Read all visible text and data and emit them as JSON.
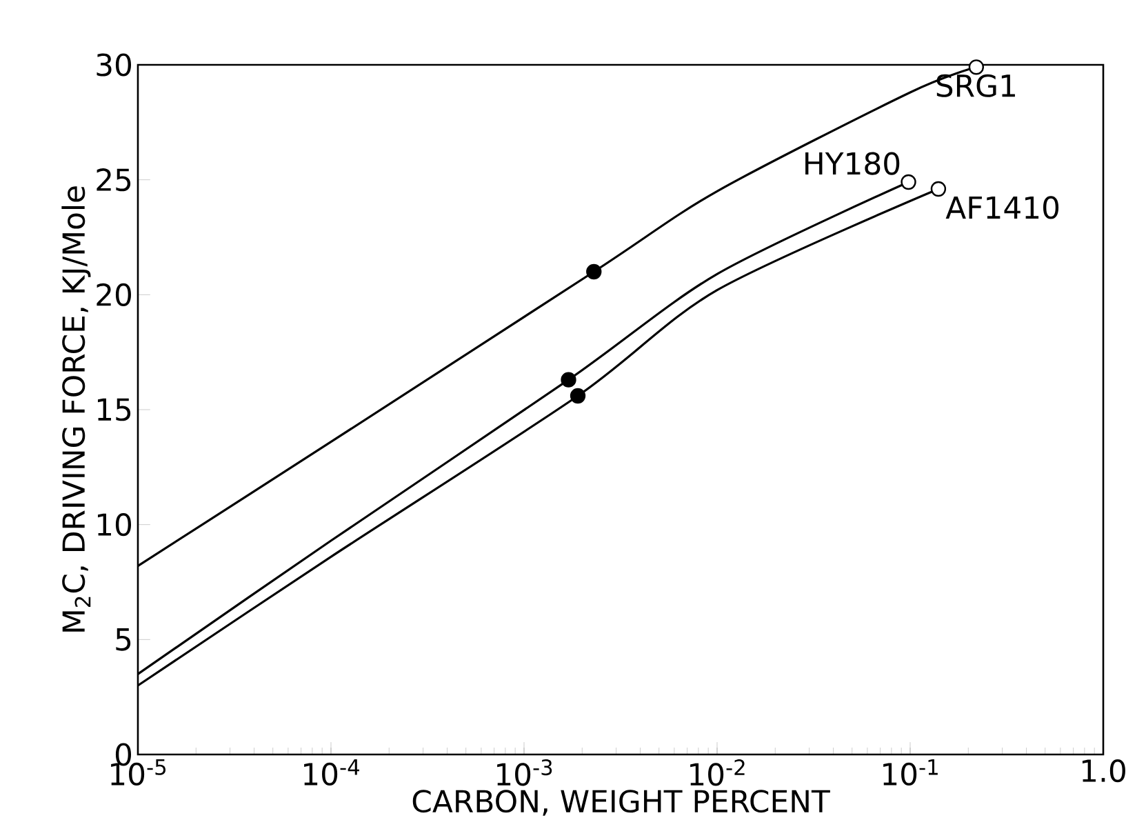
{
  "chart_data": {
    "type": "line",
    "xlabel": "CARBON, WEIGHT PERCENT",
    "ylabel": "M$_{2}$C, DRIVING FORCE, KJ/Mole",
    "log": "x",
    "grid": false,
    "line_style": "solid",
    "marker": "none",
    "xlim": [
      1e-05,
      1.0
    ],
    "ylim": [
      0,
      30
    ],
    "xticks": [
      {
        "value": 1e-05,
        "label": "10$^{-5}$"
      },
      {
        "value": 0.0001,
        "label": "10$^{-4}$"
      },
      {
        "value": 0.001,
        "label": "10$^{-3}$"
      },
      {
        "value": 0.01,
        "label": "10$^{-2}$"
      },
      {
        "value": 0.1,
        "label": "10$^{-1}$"
      },
      {
        "value": 1.0,
        "label": "1.0"
      }
    ],
    "yticks": [
      0,
      5,
      10,
      15,
      20,
      25,
      30
    ],
    "series": [
      {
        "name": "SRG1",
        "color": "#000000",
        "x": [
          1e-05,
          0.0001,
          0.0023,
          0.01,
          0.1,
          0.22
        ],
        "values": [
          8.2,
          13.6,
          21.0,
          24.5,
          28.8,
          29.9
        ]
      },
      {
        "name": "HY180",
        "color": "#000000",
        "x": [
          1e-05,
          0.0001,
          0.0017,
          0.01,
          0.098
        ],
        "values": [
          3.5,
          9.3,
          16.3,
          20.9,
          24.9
        ]
      },
      {
        "name": "AF1410",
        "color": "#000000",
        "x": [
          1e-05,
          0.0001,
          0.0019,
          0.01,
          0.14
        ],
        "values": [
          3.0,
          8.6,
          15.6,
          20.2,
          24.6
        ]
      },
      {
        "type": "scatter",
        "marker": "circle",
        "color": "#000000",
        "x": [
          0.0023,
          0.0017,
          0.0019
        ],
        "values": [
          21.0,
          16.3,
          15.6
        ]
      },
      {
        "type": "scatter",
        "marker": "circle",
        "color": "#000000",
        "x": [
          0.22,
          0.098,
          0.14
        ],
        "values": [
          29.9,
          24.9,
          24.6
        ]
      }
    ]
  }
}
